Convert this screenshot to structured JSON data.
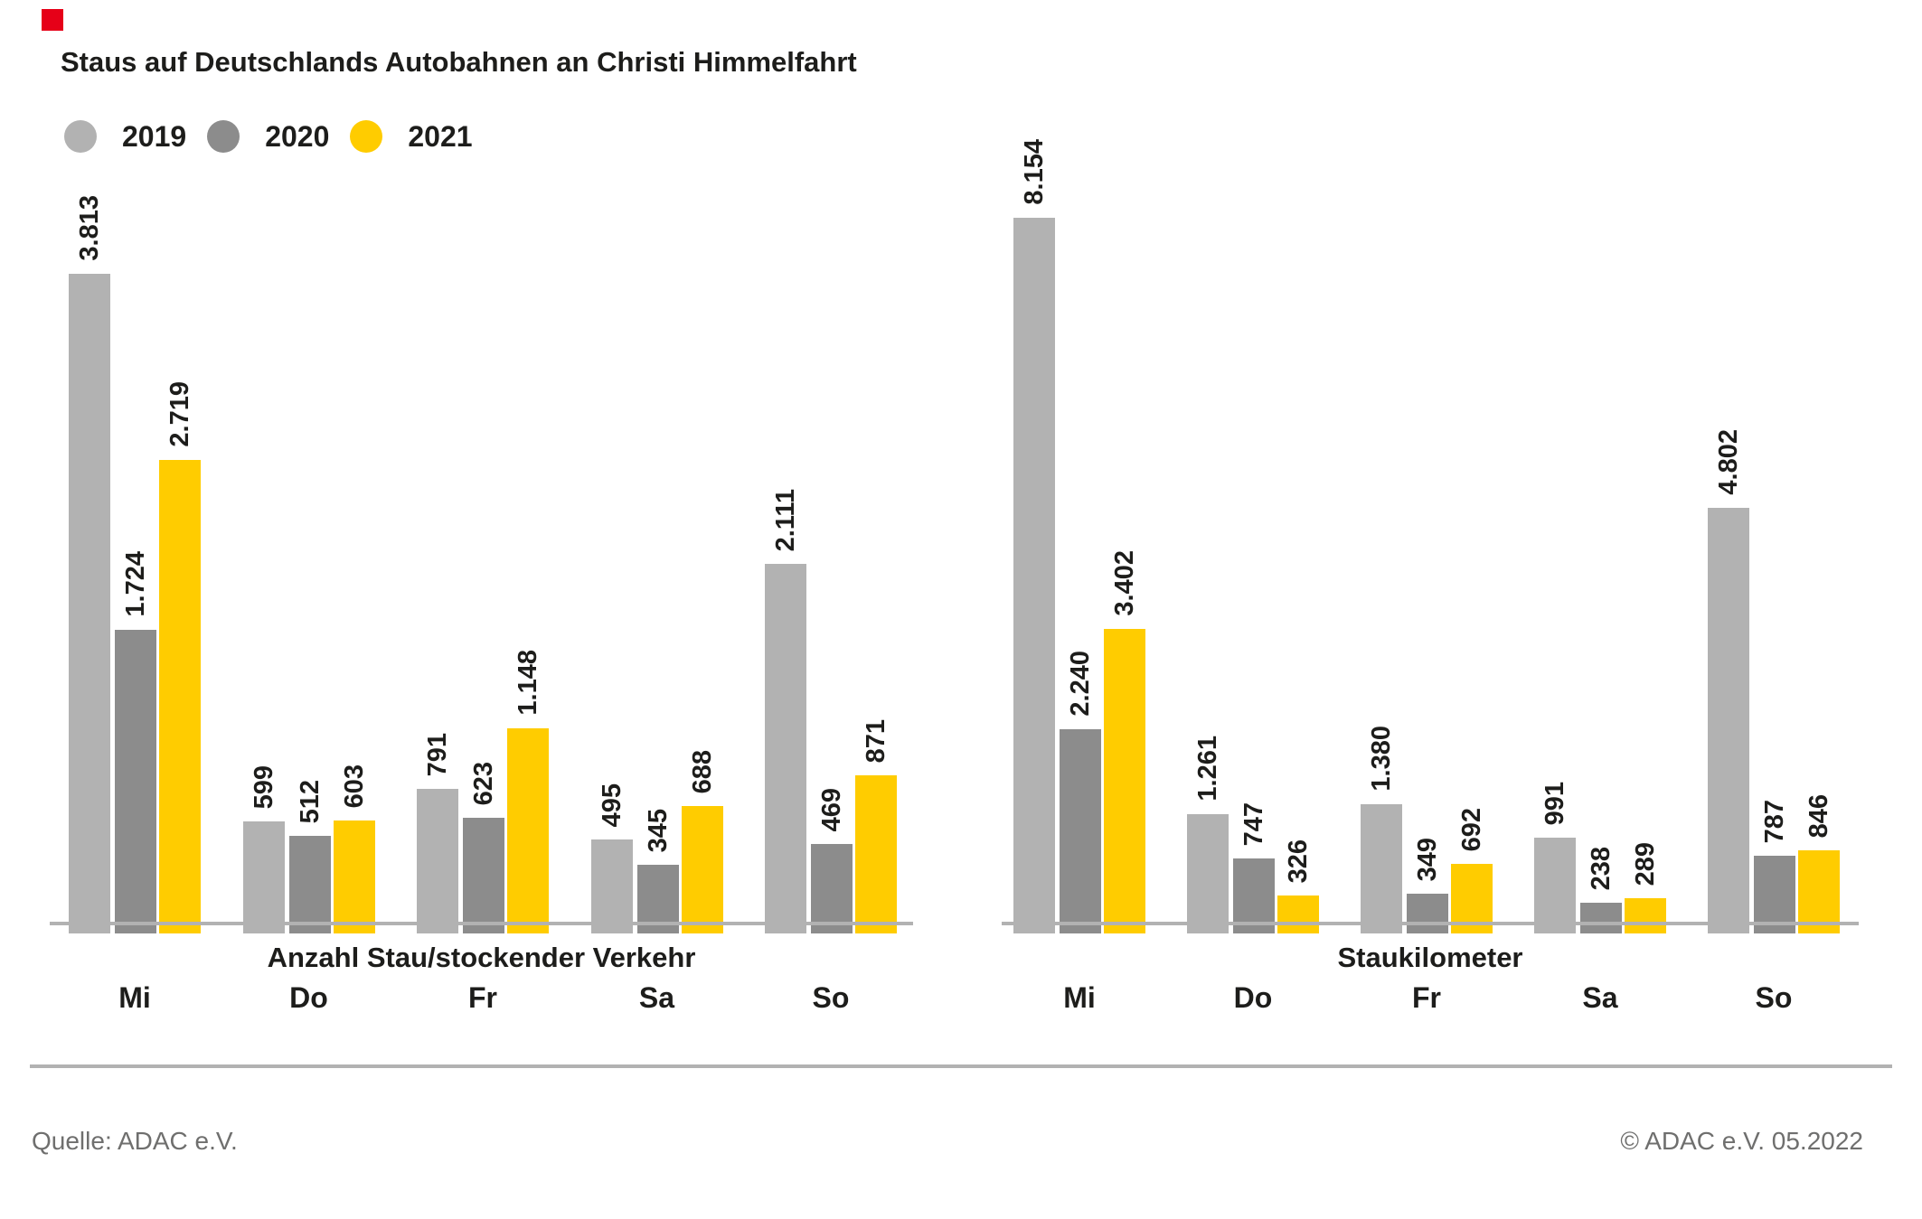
{
  "page": {
    "background": "#ffffff"
  },
  "brand": {
    "mark_color": "#e60018"
  },
  "header": {
    "title": "Staus auf Deutschlands Autobahnen an Christi Himmelfahrt"
  },
  "legend": {
    "items": [
      {
        "label": "2019",
        "color": "#b2b2b2"
      },
      {
        "label": "2020",
        "color": "#8c8c8c"
      },
      {
        "label": "2021",
        "color": "#ffcc00"
      }
    ]
  },
  "chart_data": [
    {
      "type": "bar",
      "title": "Anzahl Stau/stockender Verkehr",
      "categories": [
        "Mi",
        "Do",
        "Fr",
        "Sa",
        "So"
      ],
      "series": [
        {
          "name": "2019",
          "color": "#b2b2b2",
          "values": [
            3813,
            599,
            791,
            495,
            2111
          ],
          "labels": [
            "3.813",
            "599",
            "791",
            "495",
            "2.111"
          ]
        },
        {
          "name": "2020",
          "color": "#8c8c8c",
          "values": [
            1724,
            512,
            623,
            345,
            469
          ],
          "labels": [
            "1.724",
            "512",
            "623",
            "345",
            "469"
          ]
        },
        {
          "name": "2021",
          "color": "#ffcc00",
          "values": [
            2719,
            603,
            1148,
            688,
            871
          ],
          "labels": [
            "2.719",
            "603",
            "1.148",
            "688",
            "871"
          ]
        }
      ],
      "ylim": [
        0,
        3813
      ],
      "grid": false,
      "value_labels": "rotated-90-above-bars",
      "legend_position": "top-left"
    },
    {
      "type": "bar",
      "title": "Staukilometer",
      "categories": [
        "Mi",
        "Do",
        "Fr",
        "Sa",
        "So"
      ],
      "series": [
        {
          "name": "2019",
          "color": "#b2b2b2",
          "values": [
            8154,
            1261,
            1380,
            991,
            4802
          ],
          "labels": [
            "8.154",
            "1.261",
            "1.380",
            "991",
            "4.802"
          ]
        },
        {
          "name": "2020",
          "color": "#8c8c8c",
          "values": [
            2240,
            747,
            349,
            238,
            787
          ],
          "labels": [
            "2.240",
            "747",
            "349",
            "238",
            "787"
          ]
        },
        {
          "name": "2021",
          "color": "#ffcc00",
          "values": [
            3402,
            326,
            692,
            289,
            846
          ],
          "labels": [
            "3.402",
            "326",
            "692",
            "289",
            "846"
          ]
        }
      ],
      "ylim": [
        0,
        8154
      ],
      "grid": false,
      "value_labels": "rotated-90-above-bars",
      "legend_position": "top-left"
    }
  ],
  "footer": {
    "source": "Quelle: ADAC e.V.",
    "copyright": "© ADAC e.V. 05.2022"
  }
}
